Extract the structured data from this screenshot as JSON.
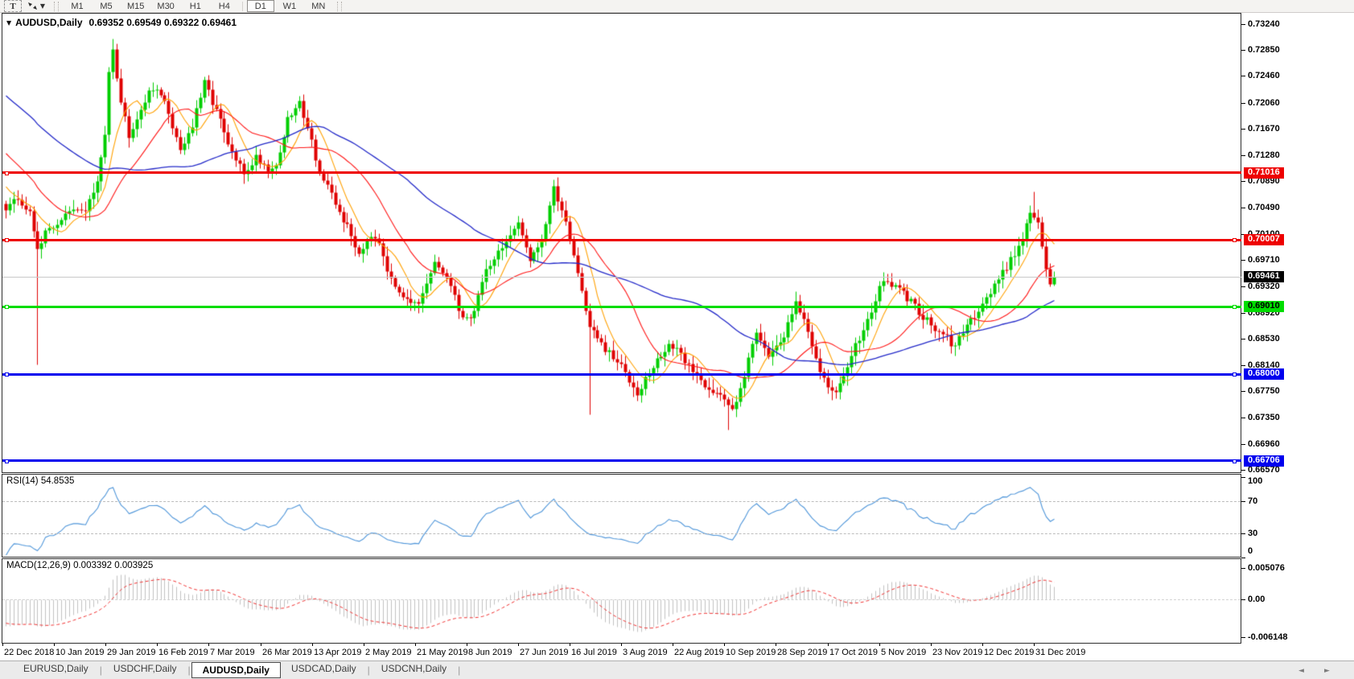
{
  "toolbar": {
    "text_tool_label": "T",
    "timeframes": [
      "M1",
      "M5",
      "M15",
      "M30",
      "H1",
      "H4",
      "D1",
      "W1",
      "MN"
    ],
    "active_timeframe": "D1"
  },
  "chart": {
    "symbol_label": "AUDUSD,Daily",
    "ohlc_text": "0.69352 0.69549 0.69322 0.69461",
    "price_ticks": [
      "0.73240",
      "0.72850",
      "0.72460",
      "0.72060",
      "0.71670",
      "0.71280",
      "0.70890",
      "0.70490",
      "0.70100",
      "0.69710",
      "0.69320",
      "0.68920",
      "0.68530",
      "0.68140",
      "0.67750",
      "0.67350",
      "0.66960",
      "0.66570"
    ],
    "current_price_label": "0.69461",
    "current_price": 0.69461,
    "hlines": [
      {
        "price": 0.71016,
        "label": "0.71016",
        "color": "#EE0000",
        "text_color": "#FFFFFF",
        "thickness": 3,
        "right_marker": false
      },
      {
        "price": 0.70007,
        "label": "0.70007",
        "color": "#EE0000",
        "text_color": "#FFFFFF",
        "thickness": 3,
        "right_marker": true
      },
      {
        "price": 0.6901,
        "label": "0.69010",
        "color": "#00DD00",
        "text_color": "#000000",
        "thickness": 3,
        "right_marker": true
      },
      {
        "price": 0.68,
        "label": "0.68000",
        "color": "#0000EE",
        "text_color": "#FFFFFF",
        "thickness": 3,
        "right_marker": true
      },
      {
        "price": 0.66706,
        "label": "0.66706",
        "color": "#0000EE",
        "text_color": "#FFFFFF",
        "thickness": 3,
        "right_marker": true
      }
    ],
    "colors": {
      "bull": "#00CE00",
      "bear": "#DF0000",
      "ma_fast": "#FFA000",
      "ma_mid": "#FF1414",
      "ma_slow": "#2228C8",
      "current_line": "#C8C8C8",
      "rsi_line": "#4E95D9",
      "macd_hist": "#C0C0C0",
      "macd_signal": "#F03030",
      "level_dash": "#BDBDBD"
    }
  },
  "rsi": {
    "label": "RSI(14) 54.8535",
    "period": 14,
    "value": 54.8535,
    "levels": [
      {
        "v": 100,
        "label": "100",
        "dashed": false
      },
      {
        "v": 70,
        "label": "70",
        "dashed": true
      },
      {
        "v": 30,
        "label": "30",
        "dashed": true
      },
      {
        "v": 0,
        "label": "0",
        "dashed": false
      }
    ]
  },
  "macd": {
    "label": "MACD(12,26,9) 0.003392 0.003925",
    "main_value": 0.003392,
    "signal_value": 0.003925,
    "axis": [
      {
        "v": 0.005076,
        "label": "0.005076"
      },
      {
        "v": 0,
        "label": "0.00"
      },
      {
        "v": -0.006148,
        "label": "-0.006148"
      }
    ]
  },
  "date_axis": [
    "22 Dec 2018",
    "10 Jan 2019",
    "29 Jan 2019",
    "16 Feb 2019",
    "7 Mar 2019",
    "26 Mar 2019",
    "13 Apr 2019",
    "2 May 2019",
    "21 May 2019",
    "8 Jun 2019",
    "27 Jun 2019",
    "16 Jul 2019",
    "3 Aug 2019",
    "22 Aug 2019",
    "10 Sep 2019",
    "28 Sep 2019",
    "17 Oct 2019",
    "5 Nov 2019",
    "23 Nov 2019",
    "12 Dec 2019",
    "31 Dec 2019"
  ],
  "tabs": [
    "EURUSD,Daily",
    "USDCHF,Daily",
    "AUDUSD,Daily",
    "USDCAD,Daily",
    "USDCNH,Daily"
  ],
  "active_tab": "AUDUSD,Daily",
  "nav_arrows": {
    "left": "◄",
    "right": "►"
  },
  "chart_data": {
    "type": "candlestick",
    "symbol": "AUDUSD",
    "timeframe": "Daily",
    "visible_price_range": [
      0.66525,
      0.73355
    ],
    "bar_count": 265,
    "last_bar": {
      "open": 0.69352,
      "high": 0.69549,
      "low": 0.69322,
      "close": 0.69461
    },
    "support_resistance": [
      0.71016,
      0.70007,
      0.6901,
      0.68,
      0.66706
    ],
    "indicators": {
      "ma_fast_period": 8,
      "ma_mid_period": 21,
      "ma_slow_period": 55,
      "rsi_period": 14,
      "macd_params": [
        12,
        26,
        9
      ],
      "rsi_value": 54.8535,
      "macd_main": 0.003392,
      "macd_signal": 0.003925
    },
    "close_anchors": [
      [
        0,
        0.705
      ],
      [
        3,
        0.7062
      ],
      [
        6,
        0.704
      ],
      [
        8,
        0.6992
      ],
      [
        11,
        0.7018
      ],
      [
        16,
        0.7042
      ],
      [
        20,
        0.7048
      ],
      [
        23,
        0.7085
      ],
      [
        25,
        0.716
      ],
      [
        26,
        0.7258
      ],
      [
        27,
        0.729
      ],
      [
        29,
        0.7208
      ],
      [
        31,
        0.716
      ],
      [
        35,
        0.7212
      ],
      [
        38,
        0.7232
      ],
      [
        41,
        0.719
      ],
      [
        44,
        0.7138
      ],
      [
        47,
        0.7172
      ],
      [
        50,
        0.7235
      ],
      [
        53,
        0.7196
      ],
      [
        56,
        0.7142
      ],
      [
        60,
        0.71
      ],
      [
        63,
        0.7126
      ],
      [
        66,
        0.7108
      ],
      [
        68,
        0.7112
      ],
      [
        71,
        0.718
      ],
      [
        74,
        0.7206
      ],
      [
        76,
        0.7172
      ],
      [
        79,
        0.7102
      ],
      [
        82,
        0.7066
      ],
      [
        85,
        0.7032
      ],
      [
        89,
        0.6982
      ],
      [
        92,
        0.7012
      ],
      [
        94,
        0.7002
      ],
      [
        97,
        0.6938
      ],
      [
        100,
        0.6922
      ],
      [
        104,
        0.69
      ],
      [
        108,
        0.6966
      ],
      [
        111,
        0.6946
      ],
      [
        114,
        0.6897
      ],
      [
        117,
        0.688
      ],
      [
        121,
        0.6958
      ],
      [
        125,
        0.6992
      ],
      [
        129,
        0.7022
      ],
      [
        132,
        0.6976
      ],
      [
        135,
        0.7002
      ],
      [
        138,
        0.7076
      ],
      [
        141,
        0.7032
      ],
      [
        144,
        0.6952
      ],
      [
        147,
        0.6872
      ],
      [
        151,
        0.6836
      ],
      [
        155,
        0.6812
      ],
      [
        159,
        0.6776
      ],
      [
        162,
        0.6802
      ],
      [
        167,
        0.6846
      ],
      [
        171,
        0.6822
      ],
      [
        175,
        0.6792
      ],
      [
        179,
        0.6772
      ],
      [
        183,
        0.6748
      ],
      [
        186,
        0.6802
      ],
      [
        189,
        0.6866
      ],
      [
        192,
        0.6832
      ],
      [
        195,
        0.6842
      ],
      [
        199,
        0.6912
      ],
      [
        202,
        0.6862
      ],
      [
        206,
        0.6792
      ],
      [
        209,
        0.6768
      ],
      [
        213,
        0.6832
      ],
      [
        217,
        0.6882
      ],
      [
        221,
        0.6942
      ],
      [
        225,
        0.6926
      ],
      [
        229,
        0.6902
      ],
      [
        234,
        0.6868
      ],
      [
        239,
        0.6842
      ],
      [
        243,
        0.6882
      ],
      [
        247,
        0.6916
      ],
      [
        251,
        0.6952
      ],
      [
        255,
        0.6992
      ],
      [
        258,
        0.7042
      ],
      [
        260,
        0.7028
      ],
      [
        261,
        0.6992
      ],
      [
        262,
        0.6958
      ],
      [
        263,
        0.69352
      ],
      [
        264,
        0.69461
      ]
    ],
    "wick_overrides": {
      "8": {
        "low": 0.6815
      },
      "27": {
        "high": 0.7302
      },
      "147": {
        "low": 0.674
      },
      "160": {
        "low": 0.6758
      },
      "182": {
        "low": 0.6718
      },
      "259": {
        "high": 0.7073
      },
      "264": {
        "open": 0.69352,
        "high": 0.69549,
        "low": 0.69322,
        "close": 0.69461
      }
    }
  }
}
